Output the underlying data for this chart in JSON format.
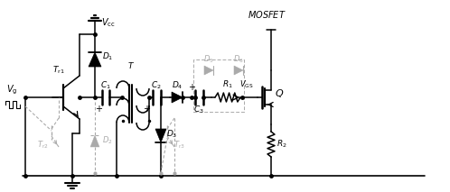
{
  "figsize": [
    4.98,
    2.13
  ],
  "dpi": 100,
  "solid_color": "#000000",
  "dashed_color": "#aaaaaa",
  "background": "#ffffff",
  "lw": 1.0,
  "dlw": 0.8
}
